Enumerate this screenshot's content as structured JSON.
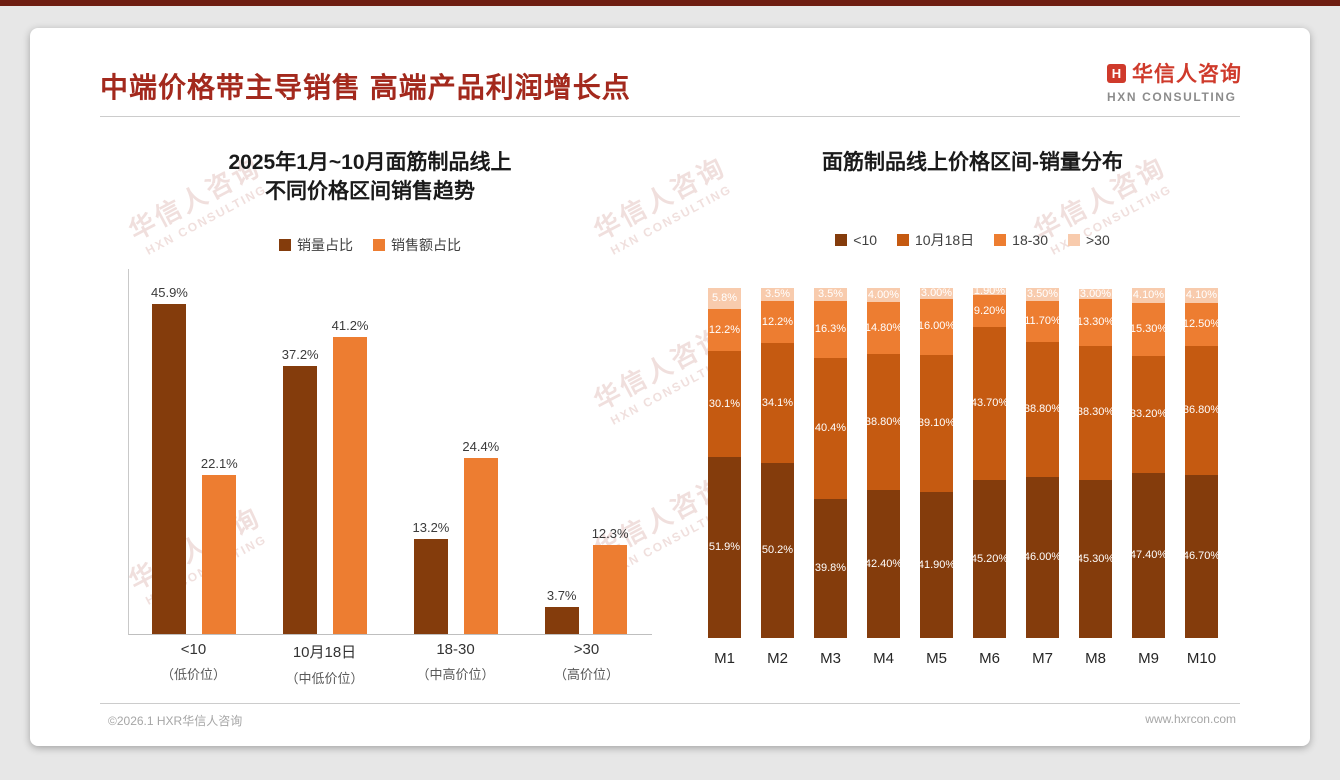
{
  "theme": {
    "accent_red": "#A3291D",
    "logo_red": "#CF3A2B",
    "bar_dark": "#843C0C",
    "bar_mid": "#C55A11",
    "bar_orange": "#ED7D31",
    "bar_light": "#F8CBAD"
  },
  "page": {
    "title": "中端价格带主导销售 高端产品利润增长点",
    "footer_left": "©2026.1 HXR华信人咨询",
    "footer_right": "www.hxrcon.com"
  },
  "logo": {
    "icon_letter": "H",
    "name": "华信人咨询",
    "subtitle": "HXN CONSULTING"
  },
  "watermark": {
    "line1": "华信人咨询",
    "line2": "HXN CONSULTING"
  },
  "chart_data": [
    {
      "type": "bar",
      "title": "2025年1月~10月面筋制品线上\n不同价格区间销售趋势",
      "categories": [
        "<10",
        "10月18日",
        "18-30",
        ">30"
      ],
      "category_sublabels": [
        "（低价位）",
        "（中低价位）",
        "（中高价位）",
        "（高价位）"
      ],
      "series": [
        {
          "name": "销量占比",
          "color": "#843C0C",
          "values": [
            45.9,
            37.2,
            13.2,
            3.7
          ],
          "labels": [
            "45.9%",
            "37.2%",
            "13.2%",
            "3.7%"
          ]
        },
        {
          "name": "销售额占比",
          "color": "#ED7D31",
          "values": [
            22.1,
            41.2,
            24.4,
            12.3
          ],
          "labels": [
            "22.1%",
            "41.2%",
            "24.4%",
            "12.3%"
          ]
        }
      ],
      "value_suffix": "%",
      "ylim": [
        0,
        50
      ],
      "grid": false,
      "legend_position": "top"
    },
    {
      "type": "stacked-bar",
      "title": "面筋制品线上价格区间-销量分布",
      "categories": [
        "M1",
        "M2",
        "M3",
        "M4",
        "M5",
        "M6",
        "M7",
        "M8",
        "M9",
        "M10"
      ],
      "series": [
        {
          "name": "<10",
          "color": "#843C0C",
          "values": [
            51.9,
            50.2,
            39.8,
            42.4,
            41.9,
            45.2,
            46.0,
            45.3,
            47.4,
            46.7
          ],
          "labels": [
            "51.9%",
            "50.2%",
            "39.8%",
            "42.40%",
            "41.90%",
            "45.20%",
            "46.00%",
            "45.30%",
            "47.40%",
            "46.70%"
          ]
        },
        {
          "name": "10月18日",
          "color": "#C55A11",
          "values": [
            30.1,
            34.1,
            40.4,
            38.8,
            39.1,
            43.7,
            38.8,
            38.3,
            33.2,
            36.8
          ],
          "labels": [
            "30.1%",
            "34.1%",
            "40.4%",
            "38.80%",
            "39.10%",
            "43.70%",
            "38.80%",
            "38.30%",
            "33.20%",
            "36.80%"
          ]
        },
        {
          "name": "18-30",
          "color": "#ED7D31",
          "values": [
            12.2,
            12.2,
            16.3,
            14.8,
            16.0,
            9.2,
            11.7,
            13.3,
            15.3,
            12.5
          ],
          "labels": [
            "12.2%",
            "12.2%",
            "16.3%",
            "14.80%",
            "16.00%",
            "9.20%",
            "11.70%",
            "13.30%",
            "15.30%",
            "12.50%"
          ]
        },
        {
          "name": ">30",
          "color": "#F8CBAD",
          "values": [
            5.8,
            3.5,
            3.5,
            4.0,
            3.0,
            1.9,
            3.5,
            3.0,
            4.1,
            4.1
          ],
          "labels": [
            "5.8%",
            "3.5%",
            "3.5%",
            "4.00%",
            "3.00%",
            "1.90%",
            "3.50%",
            "3.00%",
            "4.10%",
            "4.10%"
          ]
        }
      ],
      "value_suffix": "%",
      "ylim": [
        0,
        100
      ],
      "grid": false,
      "legend_position": "top"
    }
  ]
}
